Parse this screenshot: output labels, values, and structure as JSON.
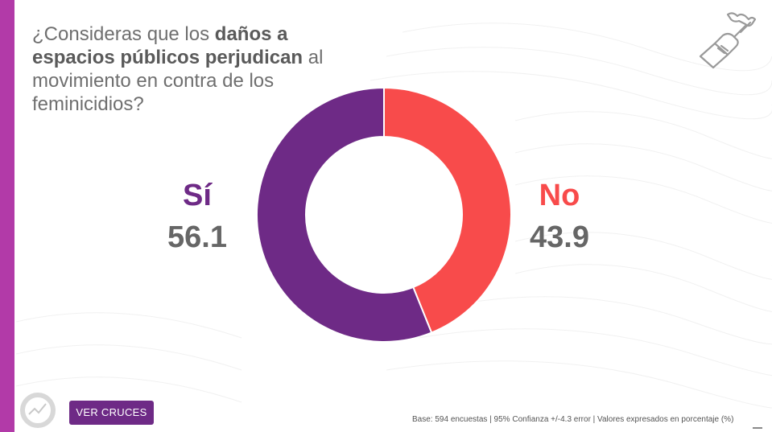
{
  "title": {
    "part1": "¿Consideras que los ",
    "bold": "daños a espacios públicos perjudican",
    "part2": " al movimiento en contra de los feminicidios?"
  },
  "chart_data": {
    "type": "pie",
    "donut": true,
    "categories": [
      "Sí",
      "No"
    ],
    "values": [
      56.1,
      43.9
    ],
    "value_labels": [
      "56.1",
      "43.9"
    ],
    "colors": [
      "#6e2a86",
      "#f84b4b"
    ]
  },
  "button": {
    "label": "VER CRUCES"
  },
  "footnote": "Base: 594 encuestas  |  95% Confianza +/-4.3 error  |  Valores expresados en porcentaje (%)",
  "colors": {
    "accent_bar": "#b23aa8",
    "si": "#6e2a86",
    "no": "#f84b4b",
    "value_text": "#666666"
  }
}
